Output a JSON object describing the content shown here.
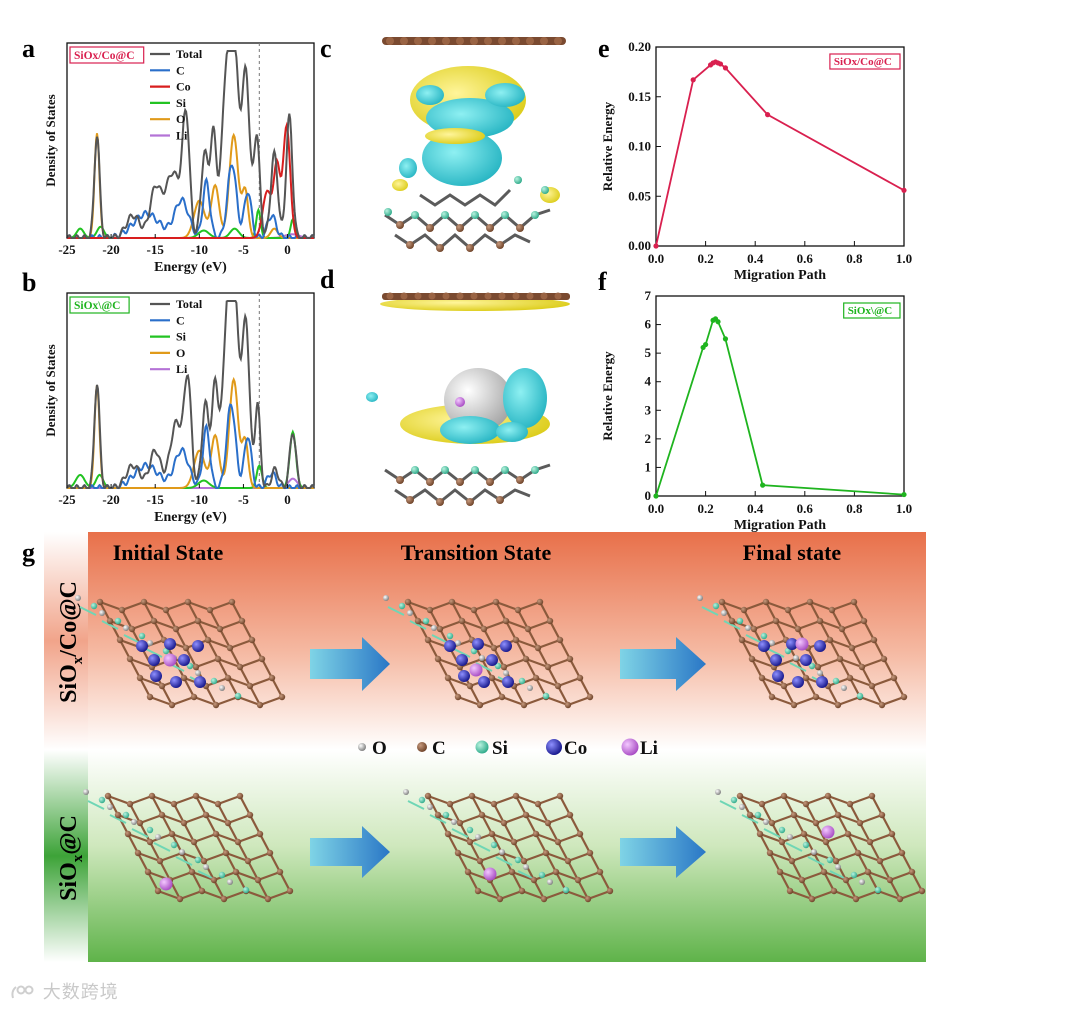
{
  "panels": {
    "a": {
      "letter": "a",
      "tag": "SiOx/Co@C",
      "tag_color": "#d9204f"
    },
    "b": {
      "letter": "b",
      "tag": "SiOx\\@C",
      "tag_color": "#1fb41f"
    },
    "c": {
      "letter": "c"
    },
    "d": {
      "letter": "d"
    },
    "e": {
      "letter": "e",
      "tag": "SiOx/Co@C",
      "tag_color": "#d9204f"
    },
    "f": {
      "letter": "f",
      "tag": "SiOx\\@C",
      "tag_color": "#1fb41f"
    },
    "g": {
      "letter": "g"
    }
  },
  "chart_data": [
    {
      "id": "dos-a",
      "type": "line",
      "xlabel": "Energy (eV)",
      "ylabel": "Density of States",
      "xlim": [
        -25,
        3
      ],
      "xticks": [
        -25,
        -20,
        -15,
        -10,
        -5,
        0
      ],
      "fermi_level": -3.2,
      "legend": "top-center",
      "series": [
        {
          "name": "Total",
          "color": "#555555"
        },
        {
          "name": "C",
          "color": "#2a6fca"
        },
        {
          "name": "Co",
          "color": "#d81e1e"
        },
        {
          "name": "Si",
          "color": "#22c322"
        },
        {
          "name": "O",
          "color": "#e09a1a"
        },
        {
          "name": "Li",
          "color": "#b473d6"
        }
      ]
    },
    {
      "id": "dos-b",
      "type": "line",
      "xlabel": "Energy (eV)",
      "ylabel": "Density of States",
      "xlim": [
        -25,
        3
      ],
      "xticks": [
        -25,
        -20,
        -15,
        -10,
        -5,
        0
      ],
      "fermi_level": -3.2,
      "legend": "top-center",
      "series": [
        {
          "name": "Total",
          "color": "#555555"
        },
        {
          "name": "C",
          "color": "#2a6fca"
        },
        {
          "name": "Si",
          "color": "#22c322"
        },
        {
          "name": "O",
          "color": "#e09a1a"
        },
        {
          "name": "Li",
          "color": "#b473d6"
        }
      ]
    },
    {
      "id": "energy-e",
      "type": "line",
      "xlabel": "Migration Path",
      "ylabel": "Relative Energy",
      "xlim": [
        0,
        1.0
      ],
      "ylim": [
        0,
        0.2
      ],
      "xticks": [
        "0.0",
        "0.2",
        "0.4",
        "0.6",
        "0.8",
        "1.0"
      ],
      "yticks": [
        "0.00",
        "0.05",
        "0.10",
        "0.15",
        "0.20"
      ],
      "color": "#d9204f",
      "x": [
        0.0,
        0.15,
        0.22,
        0.23,
        0.24,
        0.25,
        0.26,
        0.28,
        0.45,
        1.0
      ],
      "y": [
        0.0,
        0.167,
        0.182,
        0.184,
        0.185,
        0.184,
        0.183,
        0.179,
        0.132,
        0.056
      ]
    },
    {
      "id": "energy-f",
      "type": "line",
      "xlabel": "Migration Path",
      "ylabel": "Relative Energy",
      "xlim": [
        0,
        1.0
      ],
      "ylim": [
        0,
        7
      ],
      "xticks": [
        "0.0",
        "0.2",
        "0.4",
        "0.6",
        "0.8",
        "1.0"
      ],
      "yticks": [
        "0",
        "1",
        "2",
        "3",
        "4",
        "5",
        "6",
        "7"
      ],
      "color": "#1fb41f",
      "x": [
        0.0,
        0.19,
        0.2,
        0.23,
        0.24,
        0.25,
        0.28,
        0.43,
        1.0
      ],
      "y": [
        0.0,
        5.2,
        5.3,
        6.15,
        6.2,
        6.1,
        5.5,
        0.38,
        0.05
      ]
    }
  ],
  "panel_g": {
    "states": [
      "Initial State",
      "Transition State",
      "Final state"
    ],
    "rows": [
      {
        "label_main": "SiO",
        "label_sub": "x",
        "label_rest": "/Co@C"
      },
      {
        "label_main": "SiO",
        "label_sub": "x",
        "label_rest": "@C"
      }
    ],
    "atom_legend": [
      {
        "symbol": "O",
        "color": "#9a9a9a"
      },
      {
        "symbol": "C",
        "color": "#8b5a3c"
      },
      {
        "symbol": "Si",
        "color": "#43c9a3"
      },
      {
        "symbol": "Co",
        "color": "#1c1ea0"
      },
      {
        "symbol": "Li",
        "color": "#c36fd8"
      }
    ]
  },
  "watermark": "大数跨境"
}
